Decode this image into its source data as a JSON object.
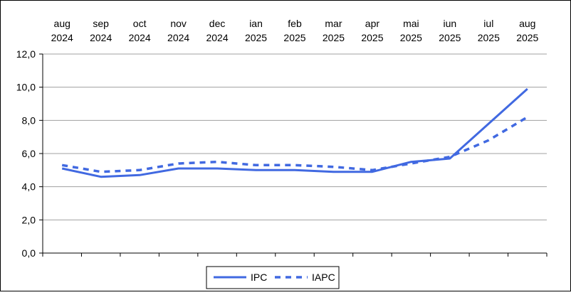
{
  "chart_data": {
    "type": "line",
    "categories": [
      [
        "aug",
        "2024"
      ],
      [
        "sep",
        "2024"
      ],
      [
        "oct",
        "2024"
      ],
      [
        "nov",
        "2024"
      ],
      [
        "dec",
        "2024"
      ],
      [
        "ian",
        "2025"
      ],
      [
        "feb",
        "2025"
      ],
      [
        "mar",
        "2025"
      ],
      [
        "apr",
        "2025"
      ],
      [
        "mai",
        "2025"
      ],
      [
        "iun",
        "2025"
      ],
      [
        "iul",
        "2025"
      ],
      [
        "aug",
        "2025"
      ]
    ],
    "y_ticks": [
      "0,0",
      "2,0",
      "4,0",
      "6,0",
      "8,0",
      "10,0",
      "12,0"
    ],
    "ylim": [
      0,
      12
    ],
    "grid": true,
    "legend_position": "bottom-center",
    "series": [
      {
        "name": "IPC",
        "style": "solid",
        "color": "#4169E1",
        "values": [
          5.1,
          4.6,
          4.7,
          5.1,
          5.1,
          5.0,
          5.0,
          4.9,
          4.9,
          5.5,
          5.7,
          7.8,
          9.9
        ]
      },
      {
        "name": "IAPC",
        "style": "dashed",
        "color": "#4169E1",
        "values": [
          5.3,
          4.9,
          5.0,
          5.4,
          5.5,
          5.3,
          5.3,
          5.2,
          5.0,
          5.4,
          5.8,
          6.8,
          8.2
        ]
      }
    ]
  }
}
